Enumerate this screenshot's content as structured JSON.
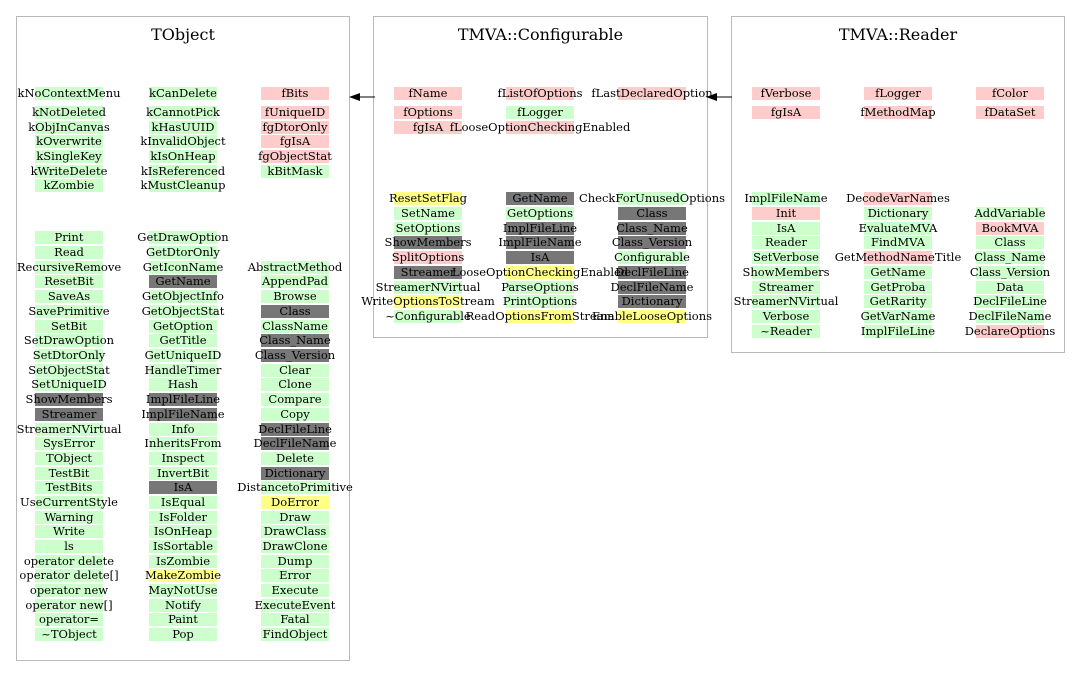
{
  "colors": {
    "green": "#ccffcc",
    "pink": "#ffcccc",
    "gray": "#777777",
    "yellow": "#ffff88",
    "box_border": "#b8b8b8"
  },
  "classes": [
    {
      "title": "TObject",
      "columns": [
        {
          "items": [
            {
              "label": "kNoContextMenu",
              "c": "green"
            },
            {
              "label": "kNotDeleted",
              "c": "green"
            },
            {
              "label": "kObjInCanvas",
              "c": "green"
            },
            {
              "label": "kOverwrite",
              "c": "green"
            },
            {
              "label": "kSingleKey",
              "c": "green"
            },
            {
              "label": "kWriteDelete",
              "c": "green"
            },
            {
              "label": "kZombie",
              "c": "green"
            },
            {
              "label": "Print",
              "c": "green"
            },
            {
              "label": "Read",
              "c": "green"
            },
            {
              "label": "RecursiveRemove",
              "c": "green"
            },
            {
              "label": "ResetBit",
              "c": "green"
            },
            {
              "label": "SaveAs",
              "c": "green"
            },
            {
              "label": "SavePrimitive",
              "c": "green"
            },
            {
              "label": "SetBit",
              "c": "green"
            },
            {
              "label": "SetDrawOption",
              "c": "green"
            },
            {
              "label": "SetDtorOnly",
              "c": "green"
            },
            {
              "label": "SetObjectStat",
              "c": "green"
            },
            {
              "label": "SetUniqueID",
              "c": "green"
            },
            {
              "label": "ShowMembers",
              "c": "gray"
            },
            {
              "label": "Streamer",
              "c": "gray"
            },
            {
              "label": "StreamerNVirtual",
              "c": "green"
            },
            {
              "label": "SysError",
              "c": "green"
            },
            {
              "label": "TObject",
              "c": "green"
            },
            {
              "label": "TestBit",
              "c": "green"
            },
            {
              "label": "TestBits",
              "c": "green"
            },
            {
              "label": "UseCurrentStyle",
              "c": "green"
            },
            {
              "label": "Warning",
              "c": "green"
            },
            {
              "label": "Write",
              "c": "green"
            },
            {
              "label": "ls",
              "c": "green"
            },
            {
              "label": "operator delete",
              "c": "green"
            },
            {
              "label": "operator delete[]",
              "c": "green"
            },
            {
              "label": "operator new",
              "c": "green"
            },
            {
              "label": "operator new[]",
              "c": "green"
            },
            {
              "label": "operator=",
              "c": "green"
            },
            {
              "label": "~TObject",
              "c": "green"
            }
          ]
        },
        {
          "items": [
            {
              "label": "kCanDelete",
              "c": "green"
            },
            {
              "label": "kCannotPick",
              "c": "green"
            },
            {
              "label": "kHasUUID",
              "c": "green"
            },
            {
              "label": "kInvalidObject",
              "c": "green"
            },
            {
              "label": "kIsOnHeap",
              "c": "green"
            },
            {
              "label": "kIsReferenced",
              "c": "green"
            },
            {
              "label": "kMustCleanup",
              "c": "green"
            },
            {
              "label": "GetDrawOption",
              "c": "green"
            },
            {
              "label": "GetDtorOnly",
              "c": "green"
            },
            {
              "label": "GetIconName",
              "c": "green"
            },
            {
              "label": "GetName",
              "c": "gray"
            },
            {
              "label": "GetObjectInfo",
              "c": "green"
            },
            {
              "label": "GetObjectStat",
              "c": "green"
            },
            {
              "label": "GetOption",
              "c": "green"
            },
            {
              "label": "GetTitle",
              "c": "green"
            },
            {
              "label": "GetUniqueID",
              "c": "green"
            },
            {
              "label": "HandleTimer",
              "c": "green"
            },
            {
              "label": "Hash",
              "c": "green"
            },
            {
              "label": "ImplFileLine",
              "c": "gray"
            },
            {
              "label": "ImplFileName",
              "c": "gray"
            },
            {
              "label": "Info",
              "c": "green"
            },
            {
              "label": "InheritsFrom",
              "c": "green"
            },
            {
              "label": "Inspect",
              "c": "green"
            },
            {
              "label": "InvertBit",
              "c": "green"
            },
            {
              "label": "IsA",
              "c": "gray"
            },
            {
              "label": "IsEqual",
              "c": "green"
            },
            {
              "label": "IsFolder",
              "c": "green"
            },
            {
              "label": "IsOnHeap",
              "c": "green"
            },
            {
              "label": "IsSortable",
              "c": "green"
            },
            {
              "label": "IsZombie",
              "c": "green"
            },
            {
              "label": "MakeZombie",
              "c": "yellow"
            },
            {
              "label": "MayNotUse",
              "c": "green"
            },
            {
              "label": "Notify",
              "c": "green"
            },
            {
              "label": "Paint",
              "c": "green"
            },
            {
              "label": "Pop",
              "c": "green"
            }
          ]
        },
        {
          "items": [
            {
              "label": "fBits",
              "c": "pink"
            },
            {
              "label": "fUniqueID",
              "c": "pink"
            },
            {
              "label": "fgDtorOnly",
              "c": "pink"
            },
            {
              "label": "fgIsA",
              "c": "pink"
            },
            {
              "label": "fgObjectStat",
              "c": "pink"
            },
            {
              "label": "kBitMask",
              "c": "green"
            },
            {
              "label": "AbstractMethod",
              "c": "green"
            },
            {
              "label": "AppendPad",
              "c": "green"
            },
            {
              "label": "Browse",
              "c": "green"
            },
            {
              "label": "Class",
              "c": "gray"
            },
            {
              "label": "ClassName",
              "c": "green"
            },
            {
              "label": "Class_Name",
              "c": "gray"
            },
            {
              "label": "Class_Version",
              "c": "gray"
            },
            {
              "label": "Clear",
              "c": "green"
            },
            {
              "label": "Clone",
              "c": "green"
            },
            {
              "label": "Compare",
              "c": "green"
            },
            {
              "label": "Copy",
              "c": "green"
            },
            {
              "label": "DeclFileLine",
              "c": "gray"
            },
            {
              "label": "DeclFileName",
              "c": "gray"
            },
            {
              "label": "Delete",
              "c": "green"
            },
            {
              "label": "Dictionary",
              "c": "gray"
            },
            {
              "label": "DistancetoPrimitive",
              "c": "green"
            },
            {
              "label": "DoError",
              "c": "yellow"
            },
            {
              "label": "Draw",
              "c": "green"
            },
            {
              "label": "DrawClass",
              "c": "green"
            },
            {
              "label": "DrawClone",
              "c": "green"
            },
            {
              "label": "Dump",
              "c": "green"
            },
            {
              "label": "Error",
              "c": "green"
            },
            {
              "label": "Execute",
              "c": "green"
            },
            {
              "label": "ExecuteEvent",
              "c": "green"
            },
            {
              "label": "Fatal",
              "c": "green"
            },
            {
              "label": "FindObject",
              "c": "green"
            }
          ]
        }
      ]
    },
    {
      "title": "TMVA::Configurable",
      "columns": [
        {
          "items": [
            {
              "label": "fName",
              "c": "pink"
            },
            {
              "label": "fOptions",
              "c": "pink"
            },
            {
              "label": "fgIsA",
              "c": "pink"
            },
            {
              "label": "ResetSetFlag",
              "c": "yellow"
            },
            {
              "label": "SetName",
              "c": "green"
            },
            {
              "label": "SetOptions",
              "c": "green"
            },
            {
              "label": "ShowMembers",
              "c": "gray"
            },
            {
              "label": "SplitOptions",
              "c": "pink"
            },
            {
              "label": "Streamer",
              "c": "gray"
            },
            {
              "label": "StreamerNVirtual",
              "c": "green"
            },
            {
              "label": "WriteOptionsToStream",
              "c": "yellow"
            },
            {
              "label": "~Configurable",
              "c": "green"
            }
          ]
        },
        {
          "items": [
            {
              "label": "fListOfOptions",
              "c": "pink"
            },
            {
              "label": "fLogger",
              "c": "green"
            },
            {
              "label": "fLooseOptionCheckingEnabled",
              "c": "pink"
            },
            {
              "label": "GetName",
              "c": "gray"
            },
            {
              "label": "GetOptions",
              "c": "green"
            },
            {
              "label": "ImplFileLine",
              "c": "gray"
            },
            {
              "label": "ImplFileName",
              "c": "gray"
            },
            {
              "label": "IsA",
              "c": "gray"
            },
            {
              "label": "LooseOptionCheckingEnabled",
              "c": "yellow"
            },
            {
              "label": "ParseOptions",
              "c": "green"
            },
            {
              "label": "PrintOptions",
              "c": "green"
            },
            {
              "label": "ReadOptionsFromStream",
              "c": "yellow"
            }
          ]
        },
        {
          "items": [
            {
              "label": "fLastDeclaredOption",
              "c": "pink"
            },
            {
              "label": "CheckForUnusedOptions",
              "c": "green"
            },
            {
              "label": "Class",
              "c": "gray"
            },
            {
              "label": "Class_Name",
              "c": "gray"
            },
            {
              "label": "Class_Version",
              "c": "gray"
            },
            {
              "label": "Configurable",
              "c": "green"
            },
            {
              "label": "DeclFileLine",
              "c": "gray"
            },
            {
              "label": "DeclFileName",
              "c": "gray"
            },
            {
              "label": "Dictionary",
              "c": "gray"
            },
            {
              "label": "EnableLooseOptions",
              "c": "yellow"
            }
          ]
        }
      ]
    },
    {
      "title": "TMVA::Reader",
      "columns": [
        {
          "items": [
            {
              "label": "fVerbose",
              "c": "pink"
            },
            {
              "label": "fgIsA",
              "c": "pink"
            },
            {
              "label": "ImplFileName",
              "c": "green"
            },
            {
              "label": "Init",
              "c": "pink"
            },
            {
              "label": "IsA",
              "c": "green"
            },
            {
              "label": "Reader",
              "c": "green"
            },
            {
              "label": "SetVerbose",
              "c": "green"
            },
            {
              "label": "ShowMembers",
              "c": "green"
            },
            {
              "label": "Streamer",
              "c": "green"
            },
            {
              "label": "StreamerNVirtual",
              "c": "green"
            },
            {
              "label": "Verbose",
              "c": "green"
            },
            {
              "label": "~Reader",
              "c": "green"
            }
          ]
        },
        {
          "items": [
            {
              "label": "fLogger",
              "c": "pink"
            },
            {
              "label": "fMethodMap",
              "c": "pink"
            },
            {
              "label": "DecodeVarNames",
              "c": "pink"
            },
            {
              "label": "Dictionary",
              "c": "green"
            },
            {
              "label": "EvaluateMVA",
              "c": "green"
            },
            {
              "label": "FindMVA",
              "c": "green"
            },
            {
              "label": "GetMethodNameTitle",
              "c": "pink"
            },
            {
              "label": "GetName",
              "c": "green"
            },
            {
              "label": "GetProba",
              "c": "green"
            },
            {
              "label": "GetRarity",
              "c": "green"
            },
            {
              "label": "GetVarName",
              "c": "green"
            },
            {
              "label": "ImplFileLine",
              "c": "green"
            }
          ]
        },
        {
          "items": [
            {
              "label": "fColor",
              "c": "pink"
            },
            {
              "label": "fDataSet",
              "c": "pink"
            },
            {
              "label": "AddVariable",
              "c": "green"
            },
            {
              "label": "BookMVA",
              "c": "pink"
            },
            {
              "label": "Class",
              "c": "green"
            },
            {
              "label": "Class_Name",
              "c": "green"
            },
            {
              "label": "Class_Version",
              "c": "green"
            },
            {
              "label": "Data",
              "c": "green"
            },
            {
              "label": "DeclFileLine",
              "c": "green"
            },
            {
              "label": "DeclFileName",
              "c": "green"
            },
            {
              "label": "DeclareOptions",
              "c": "pink"
            }
          ]
        }
      ]
    }
  ]
}
